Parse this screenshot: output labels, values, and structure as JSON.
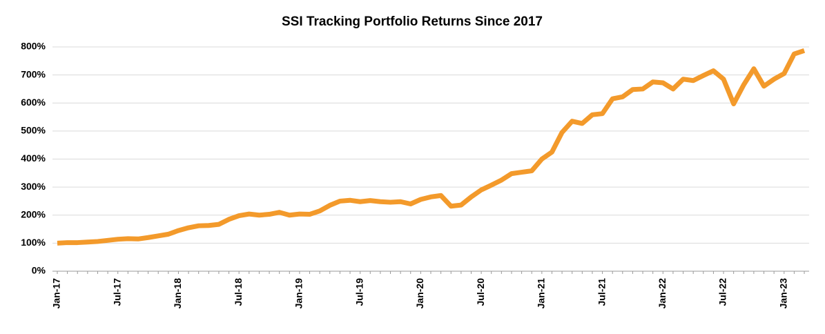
{
  "chart_data": {
    "type": "line",
    "title": "SSI Tracking Portfolio Returns Since 2017",
    "categories": [
      "Jan-17",
      null,
      null,
      null,
      null,
      null,
      "Jul-17",
      null,
      null,
      null,
      null,
      null,
      "Jan-18",
      null,
      null,
      null,
      null,
      null,
      "Jul-18",
      null,
      null,
      null,
      null,
      null,
      "Jan-19",
      null,
      null,
      null,
      null,
      null,
      "Jul-19",
      null,
      null,
      null,
      null,
      null,
      "Jan-20",
      null,
      null,
      null,
      null,
      null,
      "Jul-20",
      null,
      null,
      null,
      null,
      null,
      "Jan-21",
      null,
      null,
      null,
      null,
      null,
      "Jul-21",
      null,
      null,
      null,
      null,
      null,
      "Jan-22",
      null,
      null,
      null,
      null,
      null,
      "Jul-22",
      null,
      null,
      null,
      null,
      null,
      "Jan-23",
      null,
      null
    ],
    "series": [
      {
        "name": "SSI Tracking Portfolio",
        "color": "#f39a2b",
        "values": [
          100,
          102,
          102,
          104,
          106,
          110,
          114,
          116,
          115,
          120,
          126,
          132,
          145,
          155,
          162,
          163,
          167,
          185,
          198,
          204,
          200,
          203,
          210,
          200,
          204,
          203,
          215,
          235,
          250,
          253,
          248,
          252,
          248,
          246,
          248,
          240,
          256,
          265,
          270,
          232,
          236,
          265,
          290,
          307,
          325,
          348,
          353,
          358,
          400,
          425,
          495,
          535,
          527,
          558,
          562,
          615,
          622,
          648,
          650,
          675,
          672,
          650,
          685,
          680,
          698,
          715,
          685,
          597,
          665,
          722,
          660,
          685,
          705,
          775,
          787
        ]
      }
    ],
    "ylim": [
      0,
      800
    ],
    "yticks": [
      {
        "value": 0,
        "label": "0%"
      },
      {
        "value": 100,
        "label": "100%"
      },
      {
        "value": 200,
        "label": "200%"
      },
      {
        "value": 300,
        "label": "300%"
      },
      {
        "value": 400,
        "label": "400%"
      },
      {
        "value": 500,
        "label": "500%"
      },
      {
        "value": 600,
        "label": "600%"
      },
      {
        "value": 700,
        "label": "700%"
      },
      {
        "value": 800,
        "label": "800%"
      }
    ],
    "grid": true
  }
}
